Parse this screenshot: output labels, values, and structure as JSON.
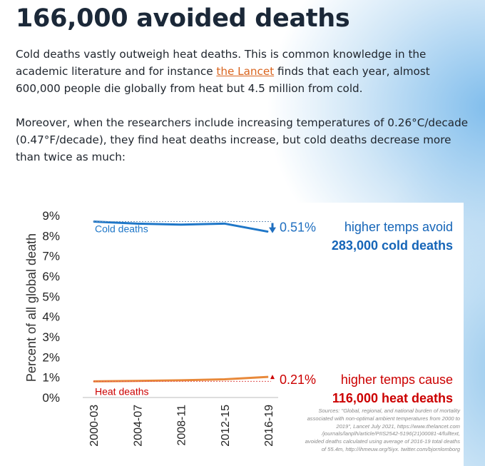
{
  "article": {
    "headline": "166,000 avoided deaths",
    "paragraph1": {
      "before": "Cold deaths vastly outweigh heat deaths. This is common knowledge in the academic literature and for instance ",
      "link_text": "the Lancet",
      "after": " finds that each year, almost 600,000 people die globally from heat but 4.5 million from cold."
    },
    "paragraph2": "Moreover, when the researchers include increasing temperatures of 0.26°C/decade (0.47°F/decade), they find heat deaths increase, but cold deaths decrease more than twice as much:",
    "link_color": "#d9641e"
  },
  "chart_data": {
    "type": "line",
    "ylabel": "Percent of all global death",
    "categories": [
      "2000-03",
      "2004-07",
      "2008-11",
      "2012-15",
      "2016-19"
    ],
    "y_ticks": [
      "0%",
      "1%",
      "2%",
      "3%",
      "4%",
      "5%",
      "6%",
      "7%",
      "8%",
      "9%"
    ],
    "ylim": [
      0,
      9
    ],
    "grid": false,
    "series": [
      {
        "name": "Cold deaths",
        "color": "#1f77c8",
        "values": [
          8.7,
          8.6,
          8.55,
          8.6,
          8.2
        ],
        "change_label": "0.51%",
        "callout_line1": "higher temps avoid",
        "callout_line2": "283,000 cold deaths",
        "callout_color": "#1565b8"
      },
      {
        "name": "Heat deaths",
        "color": "#e8893a",
        "values": [
          0.8,
          0.82,
          0.85,
          0.9,
          1.02
        ],
        "change_label": "0.21%",
        "callout_line1": "higher temps cause",
        "callout_line2": "116,000 heat deaths",
        "callout_color": "#cc0000"
      }
    ],
    "source_note": "Sources: \"Global, regional, and national burden of mortality associated with non-optimal ambient temperatures from 2000 to 2019\", Lancet July 2021, https://www.thelancet.com /journals/lanplh/article/PIIS2542-5196(21)00081-4/fulltext, avoided deaths calculated using average of 2016-19 total deaths of 55.4m, http://ihmeuw.org/5iyx. twitter.com/bjornlomborg"
  }
}
